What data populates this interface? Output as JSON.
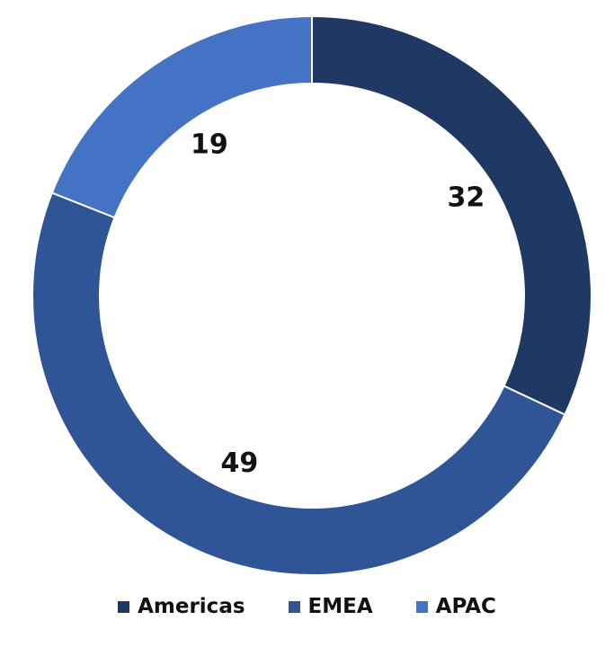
{
  "chart_data": {
    "type": "pie",
    "variant": "donut",
    "categories": [
      "Americas",
      "EMEA",
      "APAC"
    ],
    "values": [
      32,
      49,
      19
    ],
    "colors": [
      "#203864",
      "#2F5597",
      "#4472C4"
    ],
    "data_labels": [
      "32",
      "49",
      "19"
    ],
    "legend_position": "bottom",
    "title": ""
  }
}
